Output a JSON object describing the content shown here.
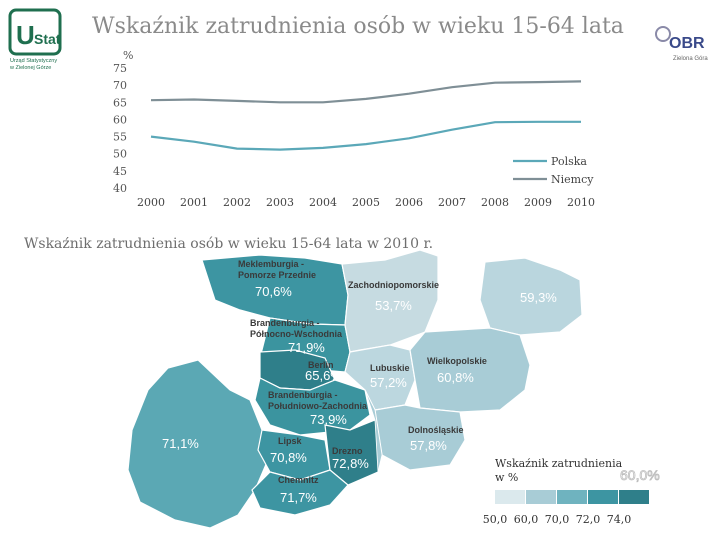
{
  "title": "Wskaźnik zatrudnienia osób w wieku 15-64 lata",
  "logos": {
    "ustat_text": "Urząd Statystyczny w Zielonej Górze",
    "obr_text": "OBR",
    "obr_sub": "Zielona Góra"
  },
  "chart_data": [
    {
      "type": "line",
      "ylabel": "%",
      "ylim": [
        40,
        75
      ],
      "yticks": [
        75,
        70,
        65,
        60,
        55,
        50,
        45,
        40
      ],
      "x": [
        2000,
        2001,
        2002,
        2003,
        2004,
        2005,
        2006,
        2007,
        2008,
        2009,
        2010
      ],
      "series": [
        {
          "name": "Polska",
          "color": "#5ba8b8",
          "values": [
            55.0,
            53.5,
            51.5,
            51.2,
            51.7,
            52.8,
            54.5,
            57.0,
            59.2,
            59.3,
            59.3
          ]
        },
        {
          "name": "Niemcy",
          "color": "#7f8f96",
          "values": [
            65.6,
            65.8,
            65.4,
            65.0,
            65.0,
            66.0,
            67.5,
            69.4,
            70.7,
            70.9,
            71.1
          ]
        }
      ],
      "legend_position": "bottom-right",
      "grid": false
    },
    {
      "type": "choropleth",
      "title": "Wskaźnik zatrudnienia osób w wieku 15-64 lata w 2010 r.",
      "regions": [
        {
          "name": "Meklemburgia - Pomorze Przednie",
          "value_label": "70,6%",
          "value": 70.6,
          "color": "#3d95a2"
        },
        {
          "name": "Zachodniopomorskie",
          "value_label": "53,7%",
          "value": 53.7,
          "color": "#c6dbe1"
        },
        {
          "name": "",
          "value_label": "59,3%",
          "value": 59.3,
          "color": "#bad6de"
        },
        {
          "name": "Brandenburgia - Północno-Wschodnia",
          "value_label": "71,9%",
          "value": 71.9,
          "color": "#3b949f"
        },
        {
          "name": "Berlin",
          "value_label": "65,6%",
          "value": 65.6,
          "color": "#2f7f8a"
        },
        {
          "name": "Lubuskie",
          "value_label": "57,2%",
          "value": 57.2,
          "color": "#bcd7df"
        },
        {
          "name": "Wielkopolskie",
          "value_label": "60,8%",
          "value": 60.8,
          "color": "#a8ccd6"
        },
        {
          "name": "Brandenburgia - Południowo-Zachodnia",
          "value_label": "73,9%",
          "value": 73.9,
          "color": "#3b949f"
        },
        {
          "name": "",
          "value_label": "71,1%",
          "value": 71.1,
          "color": "#5ba8b4"
        },
        {
          "name": "Dolnośląskie",
          "value_label": "57,8%",
          "value": 57.8,
          "color": "#a8ccd6"
        },
        {
          "name": "Lipsk",
          "value_label": "70,8%",
          "value": 70.8,
          "color": "#3d95a2"
        },
        {
          "name": "Drezno",
          "value_label": "72,8%",
          "value": 72.8,
          "color": "#2f7f8a"
        },
        {
          "name": "Chemnitz",
          "value_label": "71,7%",
          "value": 71.7,
          "color": "#3d95a2"
        }
      ],
      "ghost_value": "60,0%",
      "legend": {
        "title": "Wskaźnik zatrudnienia w %",
        "ticks": [
          "50,0",
          "60,0",
          "70,0",
          "72,0",
          "74,0"
        ],
        "colors": [
          "#dbe9ed",
          "#a8ccd6",
          "#6fb3bf",
          "#3d95a2",
          "#2f7f8a"
        ]
      }
    }
  ]
}
